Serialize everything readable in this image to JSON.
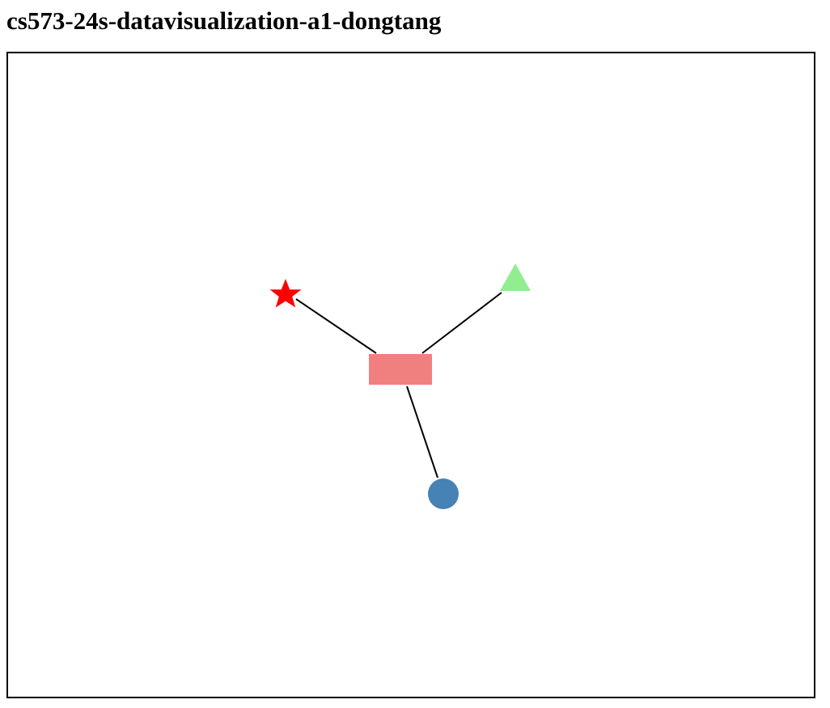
{
  "page": {
    "title": "cs573-24s-datavisualization-a1-dongtang"
  },
  "diagram": {
    "shapes": [
      {
        "id": "hub",
        "kind": "rect",
        "color": "#F08080"
      },
      {
        "id": "star",
        "kind": "star",
        "color": "#FF0000"
      },
      {
        "id": "triangle",
        "kind": "triangle",
        "color": "#90EE90"
      },
      {
        "id": "circle",
        "kind": "circle",
        "color": "#4682B4"
      }
    ],
    "links": [
      {
        "from": "hub",
        "to": "star"
      },
      {
        "from": "hub",
        "to": "triangle"
      },
      {
        "from": "hub",
        "to": "circle"
      }
    ],
    "link_color": "#000000"
  }
}
